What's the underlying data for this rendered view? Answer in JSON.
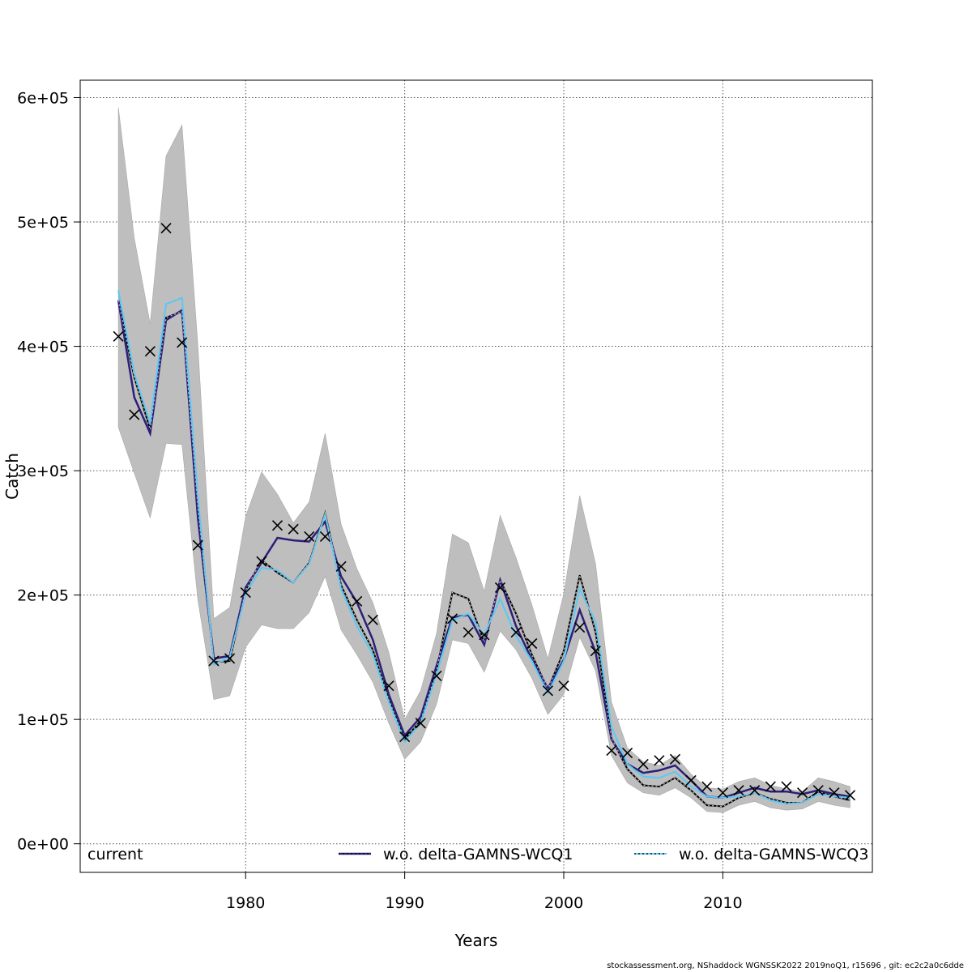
{
  "chart_data": {
    "type": "line",
    "xlabel": "Years",
    "ylabel": "Catch",
    "xlim": [
      1969.6,
      2019.4
    ],
    "ylim": [
      -23000,
      614000
    ],
    "x_ticks": [
      1980,
      1990,
      2000,
      2010
    ],
    "x_tick_labels": [
      "1980",
      "1990",
      "2000",
      "2010"
    ],
    "y_ticks": [
      0,
      100000,
      200000,
      300000,
      400000,
      500000,
      600000
    ],
    "y_tick_labels": [
      "0e+00",
      "1e+05",
      "2e+05",
      "3e+05",
      "4e+05",
      "5e+05",
      "6e+05"
    ],
    "grid": true,
    "legend_position": "bottom",
    "x": [
      1972,
      1973,
      1974,
      1975,
      1976,
      1977,
      1978,
      1979,
      1980,
      1981,
      1982,
      1983,
      1984,
      1985,
      1986,
      1987,
      1988,
      1989,
      1990,
      1991,
      1992,
      1993,
      1994,
      1995,
      1996,
      1997,
      1998,
      1999,
      2000,
      2001,
      2002,
      2003,
      2004,
      2005,
      2006,
      2007,
      2008,
      2009,
      2010,
      2011,
      2012,
      2013,
      2014,
      2015,
      2016,
      2017,
      2018
    ],
    "band": {
      "color": "#bebebe",
      "lower": [
        335000,
        298000,
        262000,
        322000,
        321000,
        196000,
        116000,
        119000,
        158000,
        176000,
        173000,
        173000,
        186000,
        215000,
        172000,
        152000,
        130000,
        97000,
        68000,
        82000,
        112000,
        164000,
        161000,
        138000,
        171000,
        156000,
        133000,
        104000,
        120000,
        166000,
        139000,
        71000,
        49000,
        41000,
        39000,
        45000,
        37000,
        26000,
        25000,
        31000,
        34000,
        29000,
        27000,
        28000,
        34000,
        31000,
        29000
      ],
      "upper": [
        592000,
        487000,
        418000,
        553000,
        578000,
        401000,
        181000,
        190000,
        263000,
        299000,
        281000,
        258000,
        275000,
        330000,
        257000,
        221000,
        194000,
        154000,
        100000,
        123000,
        169000,
        249000,
        242000,
        203000,
        264000,
        230000,
        192000,
        149000,
        201000,
        280000,
        225000,
        114000,
        77000,
        66000,
        63000,
        71000,
        56000,
        45000,
        44000,
        50000,
        53000,
        47000,
        44000,
        42000,
        53000,
        50000,
        46000
      ]
    },
    "observed": {
      "marker": "x",
      "color": "#000000",
      "values": [
        408000,
        345000,
        396000,
        495000,
        403000,
        240000,
        147000,
        149000,
        202000,
        227000,
        256000,
        253000,
        247000,
        247000,
        223000,
        195000,
        180000,
        127000,
        86000,
        97000,
        135000,
        181000,
        170000,
        168000,
        206000,
        170000,
        161000,
        123000,
        127000,
        174000,
        155000,
        75000,
        73000,
        64000,
        67000,
        68000,
        51000,
        46000,
        41000,
        43000,
        43000,
        46000,
        46000,
        41000,
        43000,
        41000,
        39000
      ]
    },
    "series": [
      {
        "name": "current",
        "color": "#000000",
        "dash": "solid",
        "values": [
          437000,
          375000,
          333000,
          423000,
          428000,
          270000,
          146000,
          147000,
          204000,
          228000,
          218000,
          210000,
          226000,
          266000,
          208000,
          180000,
          156000,
          116000,
          84000,
          99000,
          139000,
          202000,
          197000,
          162000,
          212000,
          185000,
          152000,
          124000,
          155000,
          216000,
          170000,
          85000,
          60000,
          47000,
          46000,
          53000,
          43000,
          31000,
          30000,
          37000,
          41000,
          36000,
          33000,
          33000,
          42000,
          38000,
          35000
        ]
      },
      {
        "name": "w.o. delta-GAMNS-WCQ1",
        "color": "#2c1f7a",
        "dash": "dashed",
        "values": [
          437000,
          359000,
          330000,
          421000,
          429000,
          262000,
          149000,
          151000,
          206000,
          226000,
          246000,
          244000,
          243000,
          259000,
          215000,
          194000,
          164000,
          120000,
          87000,
          102000,
          143000,
          182000,
          184000,
          160000,
          212000,
          175000,
          148000,
          125000,
          148000,
          188000,
          154000,
          84000,
          64000,
          57000,
          59000,
          63000,
          51000,
          38000,
          37000,
          41000,
          45000,
          42000,
          42000,
          40000,
          43000,
          40000,
          38000
        ]
      },
      {
        "name": "w.o. delta-GAMNS-WCQ3",
        "color": "#5ac8f5",
        "dash": "dotted",
        "values": [
          445000,
          378000,
          338000,
          434000,
          439000,
          279000,
          144000,
          150000,
          201000,
          222000,
          220000,
          210000,
          225000,
          265000,
          205000,
          175000,
          152000,
          114000,
          82000,
          97000,
          136000,
          180000,
          185000,
          168000,
          197000,
          167000,
          147000,
          121000,
          147000,
          205000,
          178000,
          94000,
          64000,
          54000,
          53000,
          58000,
          46000,
          38000,
          37000,
          38000,
          41000,
          35000,
          32000,
          33000,
          40000,
          38000,
          37000
        ]
      }
    ]
  },
  "footer": {
    "text": "stockassessment.org, NShaddock  WGNSSK2022  2019noQ1, r15696 , git: ec2c2a0c6dde"
  }
}
